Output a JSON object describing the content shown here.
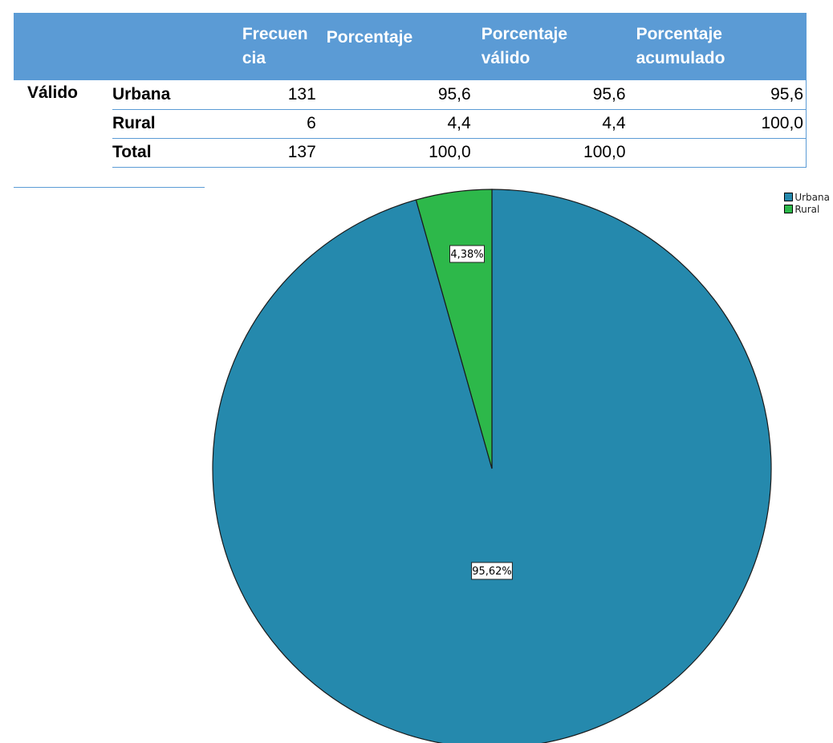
{
  "table": {
    "headers": [
      "",
      "",
      "Frecuen cia",
      "Porcentaje",
      "Porcentaje válido",
      "Porcentaje acumulado"
    ],
    "header_lines": [
      [
        "Frecuen",
        "cia"
      ],
      [
        "Porcentaje"
      ],
      [
        "Porcentaje",
        "válido"
      ],
      [
        "Porcentaje",
        "acumulado"
      ]
    ],
    "group_label": "Válido",
    "rows": [
      {
        "category": "Urbana",
        "frecuencia": "131",
        "porcentaje": "95,6",
        "porcentaje_valido": "95,6",
        "porcentaje_acumulado": "95,6"
      },
      {
        "category": "Rural",
        "frecuencia": "6",
        "porcentaje": "4,4",
        "porcentaje_valido": "4,4",
        "porcentaje_acumulado": "100,0"
      },
      {
        "category": "Total",
        "frecuencia": "137",
        "porcentaje": "100,0",
        "porcentaje_valido": "100,0",
        "porcentaje_acumulado": ""
      }
    ],
    "header_color": "#5b9bd5"
  },
  "chart_data": {
    "type": "pie",
    "categories": [
      "Urbana",
      "Rural"
    ],
    "values": [
      95.62,
      4.38
    ],
    "labels": [
      "95,62%",
      "4,38%"
    ],
    "colors": [
      "#2589ad",
      "#2db84a"
    ],
    "legend": [
      "Urbana",
      "Rural"
    ],
    "legend_position": "top-right",
    "start": "12 o'clock, counter-clockwise for Rural"
  }
}
